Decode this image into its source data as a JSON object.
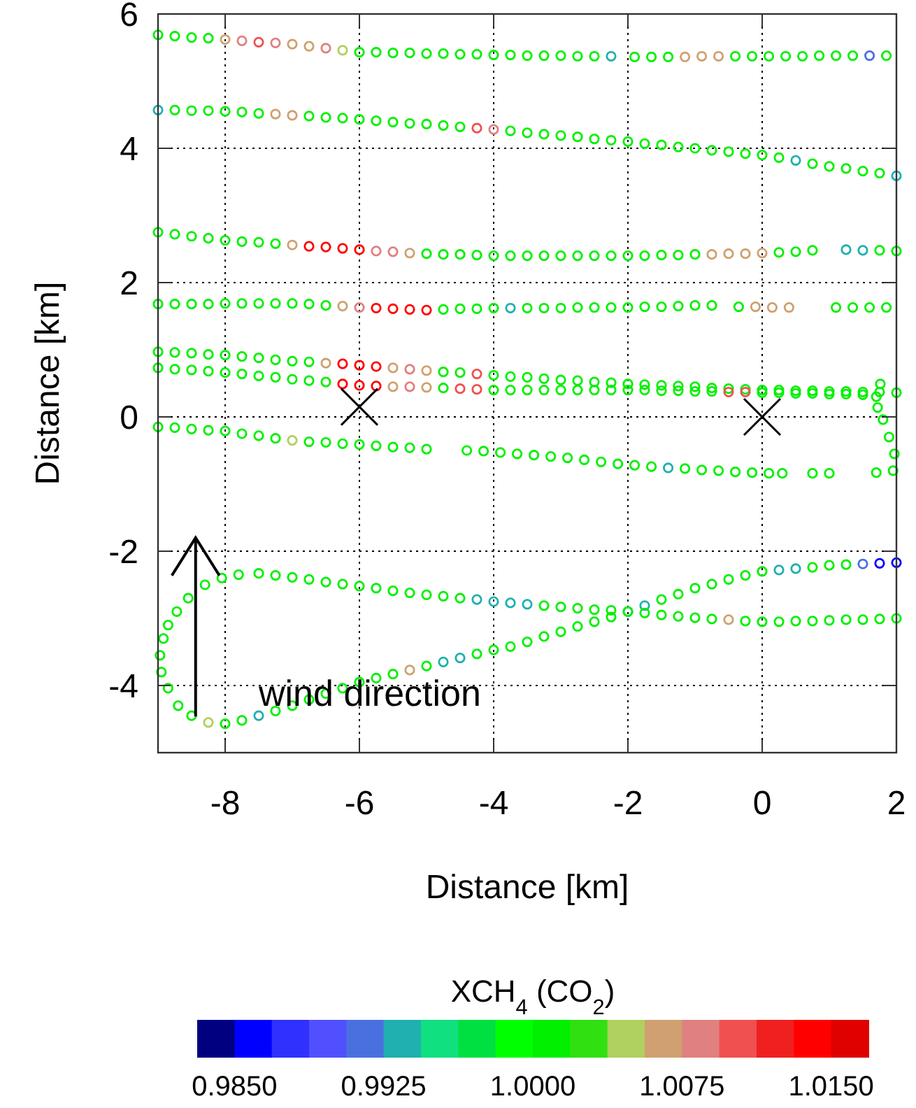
{
  "chart_data": {
    "type": "scatter",
    "xlabel": "Distance [km]",
    "ylabel": "Distance [km]",
    "clabel": "XCH$_{4}$ (CO$_{2}$)",
    "xlim": [
      -9,
      2
    ],
    "ylim": [
      -5,
      6
    ],
    "xticks": [
      -8,
      -6,
      -4,
      -2,
      0,
      2
    ],
    "yticks": [
      -4,
      -2,
      0,
      2,
      4,
      6
    ],
    "grid": true,
    "marker": "circle",
    "clim": [
      0.983125,
      1.016875
    ],
    "cticks": [
      {
        "value": 0.985,
        "label": "0.9850"
      },
      {
        "value": 0.9925,
        "label": "0.9925"
      },
      {
        "value": 1.0,
        "label": "1.0000"
      },
      {
        "value": 1.0075,
        "label": "1.0075"
      },
      {
        "value": 1.015,
        "label": "1.0150"
      }
    ],
    "annotations": [
      "wind direction"
    ],
    "series": [
      {
        "x": [
          -9,
          -8.75,
          -8.5,
          -8.25,
          -8,
          -7.75,
          -7.5,
          -7.25,
          -7,
          -6.75,
          -6.5,
          -6.25,
          -6,
          -5.75,
          -5.5,
          -5.25,
          -5,
          -4.75,
          -4.5,
          -4.25,
          -4,
          -3.75,
          -3.5,
          -3.25,
          -3,
          -2.75,
          -2.5,
          -2.25,
          -1.9,
          -1.65,
          -1.4,
          -1.15,
          -0.9,
          -0.65,
          -0.4,
          -0.15,
          0.1,
          0.35,
          0.6,
          0.85,
          1.1,
          1.35,
          1.6,
          1.85
        ],
        "values": [
          5.69,
          5.67,
          5.65,
          5.64,
          5.62,
          5.6,
          5.58,
          5.57,
          5.55,
          5.52,
          5.49,
          5.46,
          5.43,
          5.43,
          5.42,
          5.42,
          5.41,
          5.41,
          5.4,
          5.4,
          5.39,
          5.39,
          5.38,
          5.38,
          5.38,
          5.37,
          5.37,
          5.37,
          5.36,
          5.36,
          5.36,
          5.36,
          5.37,
          5.37,
          5.37,
          5.37,
          5.37,
          5.37,
          5.37,
          5.38,
          5.38,
          5.38,
          5.38,
          5.38
        ],
        "colors": [
          "#00f000",
          "#00f000",
          "#00f000",
          "#00f000",
          "#d0a070",
          "#e08080",
          "#f05050",
          "#e08080",
          "#d0a070",
          "#d0a070",
          "#e08080",
          "#b0d060",
          "#00f000",
          "#00f000",
          "#00f000",
          "#00f000",
          "#00f000",
          "#00f000",
          "#00f000",
          "#00f000",
          "#00f000",
          "#00f000",
          "#00f000",
          "#00f000",
          "#00f000",
          "#00f000",
          "#00f000",
          "#20b0b0",
          "#00f000",
          "#00f000",
          "#00f000",
          "#d0a070",
          "#d0a070",
          "#d0a070",
          "#00f000",
          "#00f000",
          "#00f000",
          "#00f000",
          "#00f000",
          "#00f000",
          "#00f000",
          "#00f000",
          "#4a70e0",
          "#00f000"
        ]
      },
      {
        "x": [
          -9,
          -8.75,
          -8.5,
          -8.25,
          -8,
          -7.75,
          -7.5,
          -7.25,
          -7,
          -6.75,
          -6.5,
          -6.25,
          -6,
          -5.75,
          -5.5,
          -5.25,
          -5,
          -4.75,
          -4.5,
          -4.25,
          -4,
          -3.75,
          -3.5,
          -3.25,
          -3,
          -2.75,
          -2.5,
          -2.25,
          -2,
          -1.75,
          -1.5,
          -1.25,
          -1,
          -0.75,
          -0.5,
          -0.25,
          0,
          0.25,
          0.5,
          0.75,
          1,
          1.25,
          1.5,
          1.75,
          2
        ],
        "values": [
          4.57,
          4.57,
          4.56,
          4.56,
          4.55,
          4.54,
          4.52,
          4.51,
          4.49,
          4.48,
          4.46,
          4.45,
          4.43,
          4.41,
          4.39,
          4.37,
          4.36,
          4.34,
          4.32,
          4.3,
          4.28,
          4.26,
          4.23,
          4.21,
          4.19,
          4.17,
          4.14,
          4.12,
          4.1,
          4.07,
          4.05,
          4.02,
          4.0,
          3.97,
          3.95,
          3.92,
          3.9,
          3.86,
          3.82,
          3.77,
          3.73,
          3.7,
          3.66,
          3.63,
          3.59
        ],
        "colors": [
          "#20b0b0",
          "#00f000",
          "#00f000",
          "#00f000",
          "#00f000",
          "#00f000",
          "#00f000",
          "#d0a070",
          "#d0a070",
          "#00f000",
          "#00f000",
          "#00f000",
          "#00f000",
          "#00f000",
          "#00f000",
          "#00f000",
          "#00f000",
          "#00f000",
          "#00f000",
          "#f05050",
          "#e08080",
          "#00f000",
          "#00f000",
          "#00f000",
          "#00f000",
          "#00f000",
          "#00f000",
          "#00f000",
          "#00f000",
          "#00f000",
          "#00f000",
          "#00f000",
          "#00f000",
          "#00f000",
          "#00f000",
          "#00f000",
          "#00f000",
          "#00f000",
          "#20b0b0",
          "#00f000",
          "#00f000",
          "#00f000",
          "#00f000",
          "#00f000",
          "#20b0b0"
        ]
      },
      {
        "x": [
          -9,
          -8.75,
          -8.5,
          -8.25,
          -8,
          -7.75,
          -7.5,
          -7.25,
          -7,
          -6.75,
          -6.5,
          -6.25,
          -6,
          -5.75,
          -5.5,
          -5.25,
          -5,
          -4.75,
          -4.5,
          -4.25,
          -4,
          -3.75,
          -3.5,
          -3.25,
          -3,
          -2.75,
          -2.5,
          -2.25,
          -2,
          -1.75,
          -1.5,
          -1.25,
          -1,
          -0.75,
          -0.5,
          -0.25,
          0,
          0.25,
          0.5,
          0.75,
          1.25,
          1.5,
          1.75,
          2
        ],
        "values": [
          2.75,
          2.72,
          2.69,
          2.66,
          2.63,
          2.61,
          2.6,
          2.58,
          2.56,
          2.54,
          2.53,
          2.51,
          2.49,
          2.47,
          2.46,
          2.44,
          2.43,
          2.42,
          2.42,
          2.41,
          2.4,
          2.4,
          2.4,
          2.4,
          2.4,
          2.4,
          2.4,
          2.4,
          2.4,
          2.4,
          2.41,
          2.41,
          2.42,
          2.42,
          2.43,
          2.43,
          2.44,
          2.45,
          2.46,
          2.48,
          2.49,
          2.48,
          2.48,
          2.47
        ],
        "colors": [
          "#00f000",
          "#00f000",
          "#00f000",
          "#00f000",
          "#00f000",
          "#00f000",
          "#00f000",
          "#00f000",
          "#d0a070",
          "#ff0000",
          "#ff0000",
          "#ff0000",
          "#ff0000",
          "#e08080",
          "#e08080",
          "#d0a070",
          "#00f000",
          "#00f000",
          "#00f000",
          "#00f000",
          "#00f000",
          "#00f000",
          "#00f000",
          "#00f000",
          "#00f000",
          "#00f000",
          "#00f000",
          "#00f000",
          "#00f000",
          "#00f000",
          "#00f000",
          "#00f000",
          "#00f000",
          "#d0a070",
          "#d0a070",
          "#d0a070",
          "#d0a070",
          "#00f000",
          "#00f000",
          "#00f000",
          "#20b0b0",
          "#20b0b0",
          "#00f000",
          "#00f000"
        ]
      },
      {
        "x": [
          -9,
          -8.75,
          -8.5,
          -8.25,
          -8,
          -7.75,
          -7.5,
          -7.25,
          -7,
          -6.75,
          -6.5,
          -6.25,
          -6,
          -5.75,
          -5.5,
          -5.25,
          -5,
          -4.75,
          -4.5,
          -4.25,
          -4,
          -3.75,
          -3.5,
          -3.25,
          -3,
          -2.75,
          -2.5,
          -2.25,
          -2,
          -1.75,
          -1.5,
          -1.25,
          -1,
          -0.75,
          -0.35,
          -0.1,
          0.15,
          0.4,
          1.1,
          1.35,
          1.6,
          1.85
        ],
        "values": [
          1.68,
          1.68,
          1.68,
          1.68,
          1.69,
          1.69,
          1.69,
          1.69,
          1.69,
          1.68,
          1.66,
          1.65,
          1.63,
          1.62,
          1.61,
          1.6,
          1.59,
          1.6,
          1.61,
          1.61,
          1.62,
          1.62,
          1.62,
          1.62,
          1.62,
          1.63,
          1.63,
          1.63,
          1.63,
          1.64,
          1.64,
          1.65,
          1.66,
          1.66,
          1.64,
          1.64,
          1.63,
          1.63,
          1.63,
          1.63,
          1.63,
          1.63
        ],
        "colors": [
          "#00f000",
          "#00f000",
          "#00f000",
          "#00f000",
          "#00f000",
          "#00f000",
          "#00f000",
          "#00f000",
          "#00f000",
          "#00f000",
          "#00f000",
          "#d0a070",
          "#e08080",
          "#ff0000",
          "#ff0000",
          "#ff0000",
          "#ff0000",
          "#00f000",
          "#00f000",
          "#00f000",
          "#00f000",
          "#20b0b0",
          "#00f000",
          "#00f000",
          "#00f000",
          "#00f000",
          "#00f000",
          "#00f000",
          "#00f000",
          "#00f000",
          "#00f000",
          "#00f000",
          "#00f000",
          "#00f000",
          "#00f000",
          "#d0a070",
          "#d0a070",
          "#d0a070",
          "#00f000",
          "#00f000",
          "#00f000",
          "#00f000"
        ]
      },
      {
        "x": [
          -9,
          -8.75,
          -8.5,
          -8.25,
          -8,
          -7.75,
          -7.5,
          -7.25,
          -7,
          -6.75,
          -6.5,
          -6.25,
          -6,
          -5.75,
          -5.5,
          -5.25,
          -5,
          -4.75,
          -4.5,
          -4.25,
          -4,
          -3.75,
          -3.5,
          -3.25,
          -3,
          -2.75,
          -2.5,
          -2.25,
          -2,
          -1.75,
          -1.5,
          -1.25,
          -1,
          -0.75,
          -0.5,
          -0.25,
          0,
          0.25,
          0.5,
          0.75,
          1,
          1.25,
          1.5,
          1.75,
          2
        ],
        "values": [
          0.97,
          0.96,
          0.95,
          0.93,
          0.92,
          0.9,
          0.88,
          0.85,
          0.83,
          0.82,
          0.8,
          0.79,
          0.77,
          0.75,
          0.73,
          0.71,
          0.69,
          0.67,
          0.66,
          0.64,
          0.62,
          0.6,
          0.59,
          0.57,
          0.55,
          0.54,
          0.52,
          0.51,
          0.49,
          0.48,
          0.47,
          0.46,
          0.45,
          0.43,
          0.42,
          0.41,
          0.4,
          0.4,
          0.39,
          0.39,
          0.38,
          0.38,
          0.37,
          0.37,
          0.36
        ],
        "colors": [
          "#00f000",
          "#00f000",
          "#00f000",
          "#00f000",
          "#00f000",
          "#00f000",
          "#00f000",
          "#00f000",
          "#00f000",
          "#00f000",
          "#d0a070",
          "#ff0000",
          "#ff0000",
          "#ff0000",
          "#d0a070",
          "#e08080",
          "#d0a070",
          "#00f000",
          "#00f000",
          "#f05050",
          "#00f000",
          "#00f000",
          "#00f000",
          "#00f000",
          "#00f000",
          "#00f000",
          "#00f000",
          "#00f000",
          "#00f000",
          "#00f000",
          "#00f000",
          "#00f000",
          "#00f000",
          "#00f000",
          "#00f000",
          "#00f000",
          "#00f000",
          "#00f000",
          "#00f000",
          "#00f000",
          "#00f000",
          "#00f000",
          "#00f000",
          "#00f000",
          "#00f000"
        ]
      },
      {
        "x": [
          -9,
          -8.75,
          -8.5,
          -8.25,
          -8,
          -7.75,
          -7.5,
          -7.25,
          -7,
          -6.75,
          -6.5,
          -6.25,
          -6,
          -5.75,
          -5.5,
          -5.25,
          -5,
          -4.75,
          -4.5,
          -4.25,
          -4,
          -3.75,
          -3.5,
          -3.25,
          -3,
          -2.75,
          -2.5,
          -2.25,
          -2,
          -1.75,
          -1.5,
          -1.25,
          -1,
          -0.75,
          -0.5,
          -0.25,
          0,
          0.25,
          0.5,
          0.75,
          1,
          1.25,
          1.5
        ],
        "values": [
          0.73,
          0.71,
          0.7,
          0.68,
          0.66,
          0.64,
          0.61,
          0.59,
          0.56,
          0.54,
          0.52,
          0.49,
          0.47,
          0.46,
          0.45,
          0.45,
          0.44,
          0.43,
          0.42,
          0.41,
          0.4,
          0.4,
          0.4,
          0.4,
          0.4,
          0.4,
          0.4,
          0.4,
          0.4,
          0.4,
          0.39,
          0.39,
          0.38,
          0.38,
          0.37,
          0.37,
          0.36,
          0.36,
          0.35,
          0.35,
          0.34,
          0.34,
          0.33
        ],
        "colors": [
          "#00f000",
          "#00f000",
          "#00f000",
          "#00f000",
          "#00f000",
          "#00f000",
          "#00f000",
          "#00f000",
          "#00f000",
          "#00f000",
          "#00f000",
          "#ff0000",
          "#ff0000",
          "#ff0000",
          "#d0a070",
          "#e08080",
          "#d0a070",
          "#00f000",
          "#f05050",
          "#f05050",
          "#00f000",
          "#00f000",
          "#00f000",
          "#00f000",
          "#00f000",
          "#00f000",
          "#00f000",
          "#00f000",
          "#00f000",
          "#00f000",
          "#00f000",
          "#00f000",
          "#00f000",
          "#00f000",
          "#f05050",
          "#f05050",
          "#00f000",
          "#00f000",
          "#00f000",
          "#00f000",
          "#00f000",
          "#00f000",
          "#00f000"
        ]
      },
      {
        "x": [
          1.76,
          1.7,
          1.72,
          1.8,
          1.89,
          1.97
        ],
        "values": [
          0.49,
          0.3,
          0.14,
          -0.04,
          -0.3,
          -0.55
        ],
        "color": "#00f000"
      },
      {
        "x": [
          -9,
          -8.75,
          -8.5,
          -8.25,
          -8,
          -7.75,
          -7.5,
          -7.25,
          -7,
          -6.75,
          -6.5,
          -6.25,
          -6,
          -5.75,
          -5.5,
          -5.25,
          -5,
          -4.4,
          -4.15,
          -3.9,
          -3.65,
          -3.4,
          -3.15,
          -2.9,
          -2.65,
          -2.4,
          -2.15,
          -1.9,
          -1.65,
          -1.4,
          -1.15,
          -0.9,
          -0.65,
          -0.4,
          -0.15,
          0.1,
          0.3,
          0.75,
          1.0,
          1.7,
          1.95
        ],
        "values": [
          -0.15,
          -0.16,
          -0.18,
          -0.2,
          -0.21,
          -0.25,
          -0.28,
          -0.32,
          -0.35,
          -0.37,
          -0.38,
          -0.4,
          -0.41,
          -0.43,
          -0.45,
          -0.46,
          -0.48,
          -0.5,
          -0.51,
          -0.53,
          -0.55,
          -0.57,
          -0.59,
          -0.61,
          -0.64,
          -0.67,
          -0.7,
          -0.72,
          -0.74,
          -0.76,
          -0.77,
          -0.79,
          -0.8,
          -0.82,
          -0.83,
          -0.84,
          -0.84,
          -0.84,
          -0.84,
          -0.83,
          -0.8
        ],
        "colors": [
          "#00f000",
          "#00f000",
          "#00f000",
          "#00f000",
          "#00f000",
          "#00f000",
          "#00f000",
          "#00f000",
          "#b0d060",
          "#00f000",
          "#00f000",
          "#00f000",
          "#00f000",
          "#00f000",
          "#00f000",
          "#00f000",
          "#00f000",
          "#00f000",
          "#00f000",
          "#00f000",
          "#00f000",
          "#00f000",
          "#00f000",
          "#00f000",
          "#00f000",
          "#00f000",
          "#00f000",
          "#00f000",
          "#00f000",
          "#20b0b0",
          "#00f000",
          "#00f000",
          "#00f000",
          "#00f000",
          "#00f000",
          "#00f000",
          "#00f000",
          "#00f000",
          "#00f000",
          "#00f000",
          "#00f000"
        ]
      },
      {
        "x": [
          2,
          1.75,
          1.5,
          1.25,
          1,
          0.75,
          0.5,
          0.25,
          0,
          -0.25,
          -0.5,
          -0.75,
          -1,
          -1.25,
          -1.5,
          -1.75,
          -2,
          -2.25,
          -2.5,
          -2.75,
          -3,
          -3.25,
          -3.5,
          -3.75,
          -4,
          -4.25,
          -4.5,
          -4.75,
          -5,
          -5.25,
          -5.5,
          -5.75,
          -6,
          -6.25,
          -6.5,
          -6.75,
          -7,
          -7.25,
          -7.5,
          -7.75,
          -8,
          -8.25,
          -8.5,
          -8.7,
          -8.85,
          -8.95,
          -8.97,
          -8.92,
          -8.85,
          -8.72,
          -8.55,
          -8.3,
          -8.05,
          -7.8,
          -7.5,
          -7.25,
          -7,
          -6.75,
          -6.5,
          -6.25,
          -6,
          -5.75,
          -5.5,
          -5.25,
          -5,
          -4.75,
          -4.5,
          -4.25,
          -4,
          -3.75,
          -3.5,
          -3.25,
          -3,
          -2.75,
          -2.5,
          -2.25,
          -2,
          -1.75,
          -1.5,
          -1.25,
          -1,
          -0.75,
          -0.5,
          -0.25,
          0,
          0.25,
          0.5,
          0.75,
          1,
          1.25,
          1.5,
          1.75,
          2
        ],
        "values": [
          -2.17,
          -2.18,
          -2.19,
          -2.2,
          -2.21,
          -2.24,
          -2.26,
          -2.28,
          -2.3,
          -2.36,
          -2.42,
          -2.49,
          -2.55,
          -2.64,
          -2.72,
          -2.81,
          -2.9,
          -2.98,
          -3.05,
          -3.12,
          -3.2,
          -3.27,
          -3.35,
          -3.42,
          -3.47,
          -3.53,
          -3.59,
          -3.65,
          -3.71,
          -3.77,
          -3.83,
          -3.89,
          -3.95,
          -4.04,
          -4.12,
          -4.21,
          -4.3,
          -4.38,
          -4.45,
          -4.52,
          -4.57,
          -4.55,
          -4.45,
          -4.3,
          -4.04,
          -3.8,
          -3.55,
          -3.3,
          -3.1,
          -2.9,
          -2.7,
          -2.5,
          -2.4,
          -2.35,
          -2.33,
          -2.36,
          -2.39,
          -2.42,
          -2.46,
          -2.49,
          -2.52,
          -2.55,
          -2.59,
          -2.62,
          -2.65,
          -2.67,
          -2.7,
          -2.72,
          -2.75,
          -2.77,
          -2.79,
          -2.81,
          -2.83,
          -2.85,
          -2.87,
          -2.88,
          -2.9,
          -2.92,
          -2.95,
          -2.97,
          -2.99,
          -3.01,
          -3.02,
          -3.04,
          -3.05,
          -3.05,
          -3.04,
          -3.04,
          -3.03,
          -3.02,
          -3.02,
          -3.01,
          -3.0
        ],
        "colors": [
          "#0000ff",
          "#0000ff",
          "#4a70e0",
          "#00f000",
          "#00f000",
          "#00f000",
          "#20b0b0",
          "#20b0b0",
          "#00f000",
          "#00f000",
          "#00f000",
          "#00f000",
          "#00f000",
          "#00f000",
          "#00f000",
          "#20b0b0",
          "#20b0b0",
          "#00f000",
          "#00f000",
          "#00f000",
          "#00f000",
          "#00f000",
          "#00f000",
          "#00f000",
          "#00f000",
          "#00f000",
          "#20b0b0",
          "#20b0b0",
          "#00f000",
          "#d0a070",
          "#00f000",
          "#00f000",
          "#00f000",
          "#00f000",
          "#00f000",
          "#00f000",
          "#00f000",
          "#00f000",
          "#20b0b0",
          "#00f000",
          "#00f000",
          "#b0d060",
          "#00f000",
          "#00f000",
          "#00f000",
          "#00f000",
          "#00f000",
          "#00f000",
          "#00f000",
          "#00f000",
          "#00f000",
          "#00f000",
          "#00f000",
          "#00f000",
          "#00f000",
          "#00f000",
          "#00f000",
          "#00f000",
          "#00f000",
          "#00f000",
          "#00f000",
          "#00f000",
          "#00f000",
          "#00f000",
          "#00f000",
          "#00f000",
          "#00f000",
          "#20b0b0",
          "#20b0b0",
          "#20b0b0",
          "#20b0b0",
          "#00f000",
          "#00f000",
          "#00f000",
          "#00f000",
          "#00f000",
          "#00f000",
          "#00f000",
          "#00f000",
          "#00f000",
          "#00f000",
          "#00f000",
          "#d0a070",
          "#00f000",
          "#00f000",
          "#00f000",
          "#00f000",
          "#00f000",
          "#00f000",
          "#00f000",
          "#00f000",
          "#00f000",
          "#00f000"
        ]
      },
      {
        "type": "scatter",
        "marker": "cross",
        "color": "#000000",
        "x": [
          -6,
          0
        ],
        "values": [
          0.15,
          0.0
        ]
      }
    ]
  }
}
